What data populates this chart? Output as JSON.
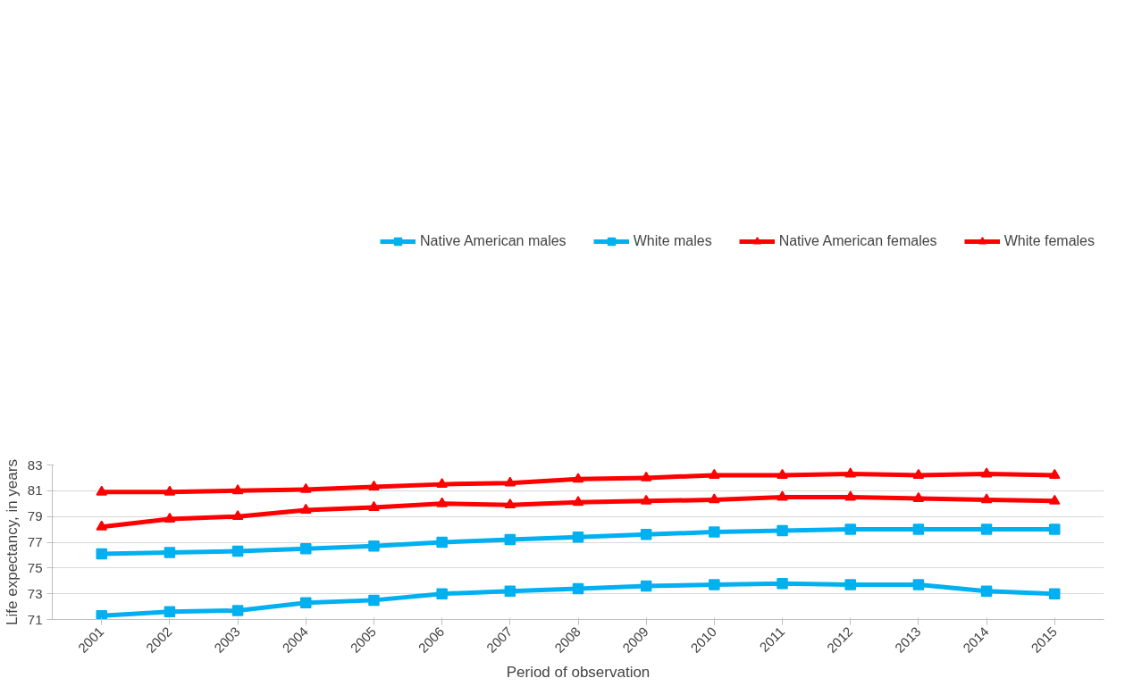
{
  "chart_data": {
    "type": "line",
    "xlabel": "Period of observation",
    "ylabel": "Life expectancy, in years",
    "categories": [
      "2001",
      "2002",
      "2003",
      "2004",
      "2005",
      "2006",
      "2007",
      "2008",
      "2009",
      "2010",
      "2011",
      "2012",
      "2013",
      "2014",
      "2015"
    ],
    "ylim": [
      71,
      83
    ],
    "yticks": [
      71,
      73,
      75,
      77,
      79,
      81,
      83
    ],
    "grid": "y",
    "legend": "top",
    "line_style": "solid",
    "series": [
      {
        "name": "Native American males",
        "color": "#00b0f0",
        "marker": "square",
        "values": [
          71.3,
          71.6,
          71.7,
          72.3,
          72.5,
          73.0,
          73.2,
          73.4,
          73.6,
          73.7,
          73.8,
          73.7,
          73.7,
          73.2,
          73.0
        ]
      },
      {
        "name": "White males",
        "color": "#00b0f0",
        "marker": "square",
        "values": [
          76.1,
          76.2,
          76.3,
          76.5,
          76.7,
          77.0,
          77.2,
          77.4,
          77.6,
          77.8,
          77.9,
          78.0,
          78.0,
          78.0,
          78.0
        ]
      },
      {
        "name": "Native American females",
        "color": "#ff0000",
        "marker": "triangle",
        "values": [
          78.2,
          78.8,
          79.0,
          79.5,
          79.7,
          80.0,
          79.9,
          80.1,
          80.2,
          80.3,
          80.5,
          80.5,
          80.4,
          80.3,
          80.2
        ]
      },
      {
        "name": "White females",
        "color": "#ff0000",
        "marker": "triangle",
        "values": [
          80.9,
          80.9,
          81.0,
          81.1,
          81.3,
          81.5,
          81.6,
          81.9,
          82.0,
          82.2,
          82.2,
          82.3,
          82.2,
          82.3,
          82.2
        ]
      }
    ]
  }
}
